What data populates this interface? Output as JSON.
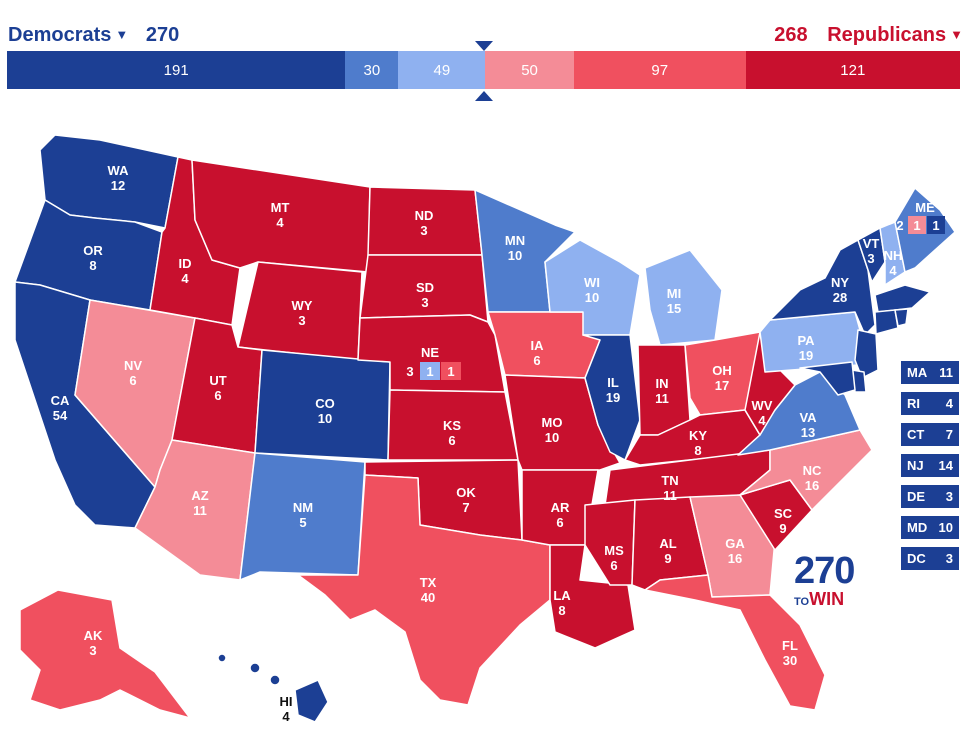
{
  "header": {
    "dem_label": "Democrats",
    "dem_total": "270",
    "rep_label": "Republicans",
    "rep_total": "268"
  },
  "colors": {
    "safe_d": "#1c3f94",
    "likely_d": "#4f7ccc",
    "lean_d": "#8fb1f0",
    "lean_r": "#f48c97",
    "likely_r": "#f0505f",
    "safe_r": "#c8102e"
  },
  "bar": [
    {
      "value": "191",
      "seats": 191,
      "color": "#1c3f94"
    },
    {
      "value": "30",
      "seats": 30,
      "color": "#4f7ccc"
    },
    {
      "value": "49",
      "seats": 49,
      "color": "#8fb1f0"
    },
    {
      "value": "50",
      "seats": 50,
      "color": "#f48c97"
    },
    {
      "value": "97",
      "seats": 97,
      "color": "#f0505f"
    },
    {
      "value": "121",
      "seats": 121,
      "color": "#c8102e"
    }
  ],
  "states": {
    "WA": {
      "abbr": "WA",
      "ev": "12",
      "color": "#1c3f94"
    },
    "OR": {
      "abbr": "OR",
      "ev": "8",
      "color": "#1c3f94"
    },
    "CA": {
      "abbr": "CA",
      "ev": "54",
      "color": "#1c3f94"
    },
    "NV": {
      "abbr": "NV",
      "ev": "6",
      "color": "#f48c97"
    },
    "ID": {
      "abbr": "ID",
      "ev": "4",
      "color": "#c8102e"
    },
    "MT": {
      "abbr": "MT",
      "ev": "4",
      "color": "#c8102e"
    },
    "WY": {
      "abbr": "WY",
      "ev": "3",
      "color": "#c8102e"
    },
    "UT": {
      "abbr": "UT",
      "ev": "6",
      "color": "#c8102e"
    },
    "AZ": {
      "abbr": "AZ",
      "ev": "11",
      "color": "#f48c97"
    },
    "CO": {
      "abbr": "CO",
      "ev": "10",
      "color": "#1c3f94"
    },
    "NM": {
      "abbr": "NM",
      "ev": "5",
      "color": "#4f7ccc"
    },
    "ND": {
      "abbr": "ND",
      "ev": "3",
      "color": "#c8102e"
    },
    "SD": {
      "abbr": "SD",
      "ev": "3",
      "color": "#c8102e"
    },
    "NE": {
      "abbr": "NE",
      "ev": "3",
      "color": "#c8102e"
    },
    "KS": {
      "abbr": "KS",
      "ev": "6",
      "color": "#c8102e"
    },
    "OK": {
      "abbr": "OK",
      "ev": "7",
      "color": "#c8102e"
    },
    "TX": {
      "abbr": "TX",
      "ev": "40",
      "color": "#f0505f"
    },
    "MN": {
      "abbr": "MN",
      "ev": "10",
      "color": "#4f7ccc"
    },
    "IA": {
      "abbr": "IA",
      "ev": "6",
      "color": "#f0505f"
    },
    "MO": {
      "abbr": "MO",
      "ev": "10",
      "color": "#c8102e"
    },
    "AR": {
      "abbr": "AR",
      "ev": "6",
      "color": "#c8102e"
    },
    "LA": {
      "abbr": "LA",
      "ev": "8",
      "color": "#c8102e"
    },
    "WI": {
      "abbr": "WI",
      "ev": "10",
      "color": "#8fb1f0"
    },
    "IL": {
      "abbr": "IL",
      "ev": "19",
      "color": "#1c3f94"
    },
    "MI": {
      "abbr": "MI",
      "ev": "15",
      "color": "#8fb1f0"
    },
    "IN": {
      "abbr": "IN",
      "ev": "11",
      "color": "#c8102e"
    },
    "OH": {
      "abbr": "OH",
      "ev": "17",
      "color": "#f0505f"
    },
    "KY": {
      "abbr": "KY",
      "ev": "8",
      "color": "#c8102e"
    },
    "TN": {
      "abbr": "TN",
      "ev": "11",
      "color": "#c8102e"
    },
    "MS": {
      "abbr": "MS",
      "ev": "6",
      "color": "#c8102e"
    },
    "AL": {
      "abbr": "AL",
      "ev": "9",
      "color": "#c8102e"
    },
    "GA": {
      "abbr": "GA",
      "ev": "16",
      "color": "#f48c97"
    },
    "FL": {
      "abbr": "FL",
      "ev": "30",
      "color": "#f0505f"
    },
    "SC": {
      "abbr": "SC",
      "ev": "9",
      "color": "#c8102e"
    },
    "NC": {
      "abbr": "NC",
      "ev": "16",
      "color": "#f48c97"
    },
    "VA": {
      "abbr": "VA",
      "ev": "13",
      "color": "#4f7ccc"
    },
    "WV": {
      "abbr": "WV",
      "ev": "4",
      "color": "#c8102e"
    },
    "PA": {
      "abbr": "PA",
      "ev": "19",
      "color": "#8fb1f0"
    },
    "NY": {
      "abbr": "NY",
      "ev": "28",
      "color": "#1c3f94"
    },
    "VT": {
      "abbr": "VT",
      "ev": "3",
      "color": "#1c3f94"
    },
    "NH": {
      "abbr": "NH",
      "ev": "4",
      "color": "#8fb1f0"
    },
    "ME": {
      "abbr": "ME",
      "ev": "2",
      "color": "#4f7ccc"
    },
    "AK": {
      "abbr": "AK",
      "ev": "3",
      "color": "#f0505f"
    },
    "HI": {
      "abbr": "HI",
      "ev": "4",
      "color": "#1c3f94"
    }
  },
  "split_boxes": {
    "ne_d": "1",
    "ne_r": "1",
    "me_r": "1",
    "me_d": "1"
  },
  "side_states": [
    {
      "abbr": "MA",
      "ev": "11"
    },
    {
      "abbr": "RI",
      "ev": "4"
    },
    {
      "abbr": "CT",
      "ev": "7"
    },
    {
      "abbr": "NJ",
      "ev": "14"
    },
    {
      "abbr": "DE",
      "ev": "3"
    },
    {
      "abbr": "MD",
      "ev": "10"
    },
    {
      "abbr": "DC",
      "ev": "3"
    }
  ],
  "logo": {
    "number": "270",
    "to": "TO",
    "win": "WIN"
  }
}
